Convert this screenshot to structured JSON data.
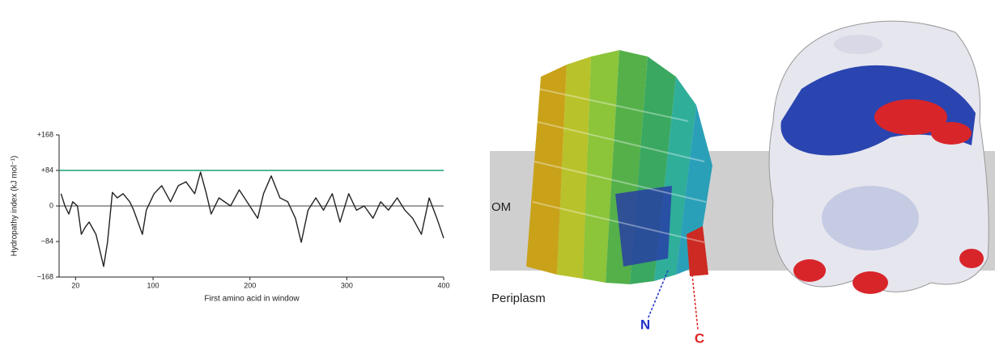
{
  "chart_data": {
    "type": "line",
    "ylabel": "Hydropathy index (kJ mol⁻¹)",
    "xlabel": "First amino acid in window",
    "x": [
      5,
      9,
      13,
      17,
      22,
      26,
      30,
      34,
      41,
      44,
      49,
      53,
      58,
      63,
      69,
      76,
      80,
      89,
      93,
      101,
      109,
      118,
      126,
      134,
      143,
      149,
      155,
      160,
      168,
      180,
      189,
      197,
      208,
      214,
      222,
      231,
      239,
      247,
      253,
      260,
      268,
      276,
      285,
      293,
      302,
      310,
      318,
      327,
      335,
      343,
      352,
      360,
      368,
      377,
      385,
      393,
      400
    ],
    "values": [
      29,
      0,
      -19,
      10,
      0,
      -67,
      -50,
      -38,
      -67,
      -95,
      -143,
      -86,
      32,
      19,
      29,
      10,
      -10,
      -67,
      -10,
      29,
      48,
      10,
      48,
      57,
      29,
      80,
      29,
      -19,
      19,
      0,
      38,
      10,
      -29,
      29,
      71,
      19,
      10,
      -29,
      -86,
      -10,
      19,
      -10,
      29,
      -38,
      29,
      -10,
      0,
      -29,
      10,
      -10,
      19,
      -10,
      -29,
      -67,
      19,
      -29,
      -76
    ],
    "color": "#222222",
    "xlim": [
      3,
      400
    ],
    "ylim": [
      -168,
      168
    ],
    "xticks": [
      20,
      100,
      200,
      300,
      400
    ],
    "yticks": [
      {
        "value": -168,
        "label": "−168"
      },
      {
        "value": -84,
        "label": "−84"
      },
      0,
      {
        "value": 84,
        "label": "+84"
      },
      {
        "value": 168,
        "label": "+168"
      }
    ],
    "reference_lines": [
      {
        "value": 84,
        "color": "#1a9e75"
      },
      {
        "value": 0,
        "color": "#000000"
      }
    ]
  },
  "structure": {
    "membrane_label": "OM",
    "periplasm_label": "Periplasm",
    "n_terminus": "N",
    "c_terminus": "C"
  }
}
